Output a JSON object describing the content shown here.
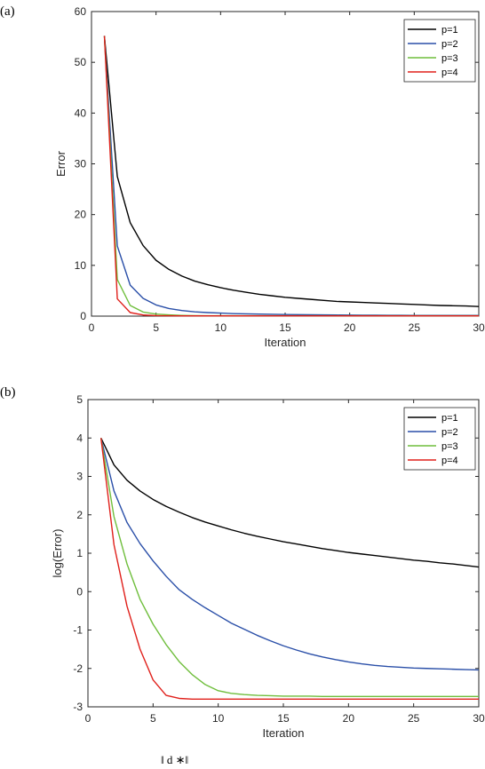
{
  "caption_fragment": "‖ d  ∗‖",
  "chart_data": [
    {
      "panel_label": "(a)",
      "type": "line",
      "xlabel": "Iteration",
      "ylabel": "Error",
      "xlim": [
        0,
        30
      ],
      "ylim": [
        0,
        60
      ],
      "xticks": [
        0,
        5,
        10,
        15,
        20,
        25,
        30
      ],
      "yticks": [
        0,
        10,
        20,
        30,
        40,
        50,
        60
      ],
      "grid": false,
      "legend_position": "top-right",
      "x": [
        1,
        2,
        3,
        4,
        5,
        6,
        7,
        8,
        9,
        10,
        11,
        12,
        13,
        14,
        15,
        16,
        17,
        18,
        19,
        20,
        21,
        22,
        23,
        24,
        25,
        26,
        27,
        28,
        29,
        30
      ],
      "series": [
        {
          "name": "p=1",
          "color": "#000000",
          "values": [
            55.2,
            27.5,
            18.4,
            13.9,
            11.0,
            9.2,
            7.9,
            6.9,
            6.2,
            5.6,
            5.1,
            4.7,
            4.3,
            4.0,
            3.7,
            3.5,
            3.3,
            3.1,
            2.9,
            2.8,
            2.7,
            2.6,
            2.5,
            2.4,
            2.3,
            2.2,
            2.1,
            2.05,
            2.0,
            1.9
          ]
        },
        {
          "name": "p=2",
          "color": "#2a4fa8",
          "values": [
            55.2,
            13.8,
            6.1,
            3.5,
            2.2,
            1.5,
            1.1,
            0.85,
            0.7,
            0.6,
            0.5,
            0.45,
            0.4,
            0.36,
            0.32,
            0.29,
            0.26,
            0.24,
            0.22,
            0.2,
            0.19,
            0.18,
            0.17,
            0.16,
            0.15,
            0.15,
            0.14,
            0.14,
            0.13,
            0.13
          ]
        },
        {
          "name": "p=3",
          "color": "#6fbe3c",
          "values": [
            55.2,
            7.2,
            2.1,
            0.8,
            0.4,
            0.25,
            0.15,
            0.1,
            0.08,
            0.07,
            0.07,
            0.07,
            0.07,
            0.07,
            0.07,
            0.07,
            0.07,
            0.07,
            0.07,
            0.07,
            0.07,
            0.07,
            0.07,
            0.07,
            0.07,
            0.07,
            0.07,
            0.07,
            0.07,
            0.07
          ]
        },
        {
          "name": "p=4",
          "color": "#e0201b",
          "values": [
            55.2,
            3.4,
            0.7,
            0.22,
            0.1,
            0.07,
            0.06,
            0.06,
            0.06,
            0.06,
            0.06,
            0.06,
            0.06,
            0.06,
            0.06,
            0.06,
            0.06,
            0.06,
            0.06,
            0.06,
            0.06,
            0.06,
            0.06,
            0.06,
            0.06,
            0.06,
            0.06,
            0.06,
            0.06,
            0.06
          ]
        }
      ]
    },
    {
      "panel_label": "(b)",
      "type": "line",
      "xlabel": "Iteration",
      "ylabel": "log(Error)",
      "xlim": [
        0,
        30
      ],
      "ylim": [
        -3,
        5
      ],
      "xticks": [
        0,
        5,
        10,
        15,
        20,
        25,
        30
      ],
      "yticks": [
        -3,
        -2,
        -1,
        0,
        1,
        2,
        3,
        4,
        5
      ],
      "grid": false,
      "legend_position": "top-right",
      "x": [
        1,
        2,
        3,
        4,
        5,
        6,
        7,
        8,
        9,
        10,
        11,
        12,
        13,
        14,
        15,
        16,
        17,
        18,
        19,
        20,
        21,
        22,
        23,
        24,
        25,
        26,
        27,
        28,
        29,
        30
      ],
      "series": [
        {
          "name": "p=1",
          "color": "#000000",
          "values": [
            4.0,
            3.3,
            2.9,
            2.62,
            2.4,
            2.22,
            2.07,
            1.93,
            1.81,
            1.71,
            1.61,
            1.52,
            1.44,
            1.37,
            1.3,
            1.24,
            1.18,
            1.12,
            1.07,
            1.02,
            0.98,
            0.94,
            0.9,
            0.86,
            0.82,
            0.79,
            0.75,
            0.72,
            0.68,
            0.64
          ]
        },
        {
          "name": "p=2",
          "color": "#2a4fa8",
          "values": [
            4.0,
            2.62,
            1.8,
            1.25,
            0.8,
            0.4,
            0.05,
            -0.2,
            -0.42,
            -0.62,
            -0.82,
            -0.98,
            -1.14,
            -1.28,
            -1.41,
            -1.52,
            -1.62,
            -1.7,
            -1.77,
            -1.83,
            -1.88,
            -1.92,
            -1.95,
            -1.97,
            -1.99,
            -2.0,
            -2.01,
            -2.02,
            -2.03,
            -2.04
          ]
        },
        {
          "name": "p=3",
          "color": "#6fbe3c",
          "values": [
            4.0,
            1.95,
            0.72,
            -0.2,
            -0.85,
            -1.38,
            -1.82,
            -2.16,
            -2.42,
            -2.58,
            -2.65,
            -2.68,
            -2.7,
            -2.71,
            -2.72,
            -2.72,
            -2.72,
            -2.73,
            -2.73,
            -2.73,
            -2.73,
            -2.73,
            -2.73,
            -2.73,
            -2.73,
            -2.73,
            -2.73,
            -2.73,
            -2.73,
            -2.73
          ]
        },
        {
          "name": "p=4",
          "color": "#e0201b",
          "values": [
            4.0,
            1.22,
            -0.38,
            -1.5,
            -2.3,
            -2.7,
            -2.78,
            -2.8,
            -2.8,
            -2.8,
            -2.8,
            -2.8,
            -2.8,
            -2.8,
            -2.8,
            -2.8,
            -2.8,
            -2.8,
            -2.8,
            -2.8,
            -2.8,
            -2.8,
            -2.8,
            -2.8,
            -2.8,
            -2.8,
            -2.8,
            -2.8,
            -2.8,
            -2.8
          ]
        }
      ]
    }
  ]
}
